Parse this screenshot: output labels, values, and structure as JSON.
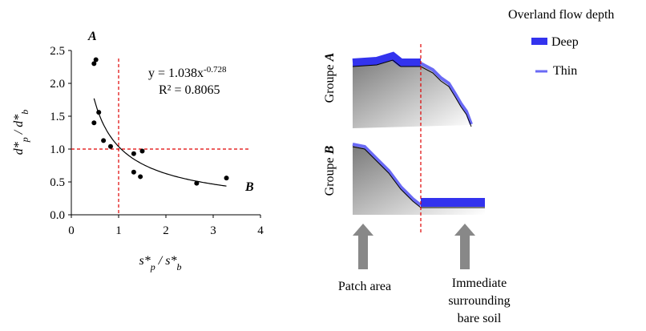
{
  "chart_data": {
    "type": "scatter",
    "x": [
      0.48,
      0.52,
      0.48,
      0.58,
      0.68,
      0.83,
      1.32,
      1.5,
      1.32,
      1.46,
      2.65,
      3.28
    ],
    "values": [
      2.3,
      2.36,
      1.4,
      1.56,
      1.13,
      1.04,
      0.93,
      0.97,
      0.65,
      0.58,
      0.48,
      0.56
    ],
    "color": "#000000",
    "xlim": [
      0,
      4
    ],
    "xticks": [
      0,
      1,
      2,
      3,
      4
    ],
    "ylim": [
      0,
      2.5
    ],
    "yticks": [
      {
        "value": 0,
        "label": "0.0"
      },
      {
        "value": 0.5,
        "label": "0.5"
      },
      {
        "value": 1,
        "label": "1.0"
      },
      {
        "value": 1.5,
        "label": "1.5"
      },
      {
        "value": 2,
        "label": "2.0"
      },
      {
        "value": 2.5,
        "label": "2.5"
      }
    ],
    "grid": false,
    "xlabel": [
      {
        "text": "s*"
      },
      {
        "text": "p",
        "sub": true
      },
      {
        "text": " / s*"
      },
      {
        "text": "b",
        "sub": true
      }
    ],
    "ylabel": [
      {
        "text": "d*"
      },
      {
        "text": "p",
        "sub": true
      },
      {
        "text": " / d*"
      },
      {
        "text": "b",
        "sub": true
      }
    ],
    "ref_lines": {
      "x": 1,
      "y": 1,
      "color": "#e00000"
    },
    "fit": {
      "label": "y = 1.038x",
      "exponent_label": "-0.728",
      "r2_label": "R² = 0.8065",
      "a": 1.038,
      "b": -0.728
    },
    "annotations": [
      "A",
      "B"
    ]
  },
  "diagram": {
    "legend_title": "Overland flow depth",
    "deep": "Deep",
    "thin": "Thin",
    "group_a": [
      {
        "text": "Groupe "
      },
      {
        "text": "A",
        "bold": true
      }
    ],
    "group_b": [
      {
        "text": "Groupe "
      },
      {
        "text": "B",
        "bold": true
      }
    ],
    "patch": "Patch area",
    "surrounding": [
      "Immediate",
      "surrounding",
      "bare soil"
    ]
  }
}
